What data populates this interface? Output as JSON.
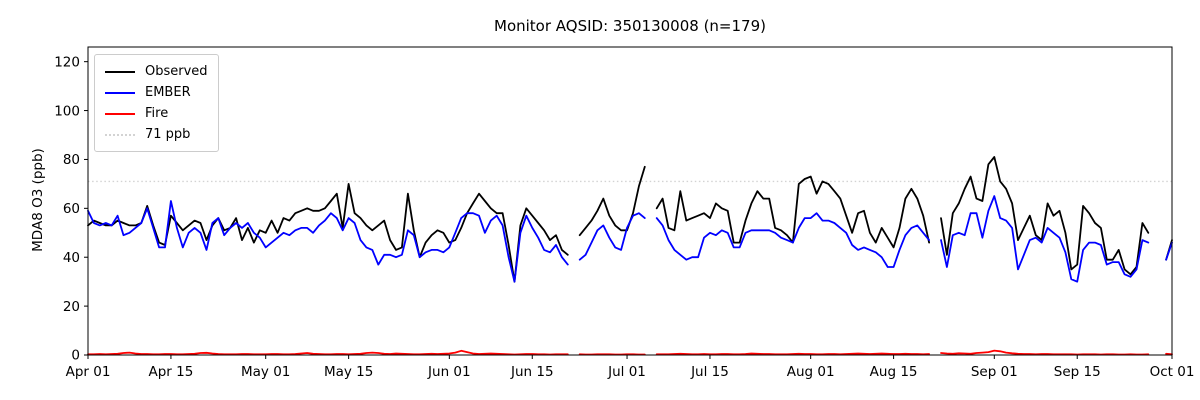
{
  "figure": {
    "background": "#ffffff"
  },
  "chart_data": {
    "type": "line",
    "title": "Monitor AQSID: 350130008 (n=179)",
    "ylabel": "MDA8 O3 (ppb)",
    "xlabel": "",
    "ylim": [
      0,
      126
    ],
    "y_ticks": [
      0,
      20,
      40,
      60,
      80,
      100,
      120
    ],
    "x_tick_days": [
      0,
      14,
      30,
      44,
      61,
      75,
      91,
      105,
      122,
      136,
      153,
      167,
      183
    ],
    "x_tick_labels": [
      "Apr 01",
      "Apr 15",
      "May 01",
      "May 15",
      "Jun 01",
      "Jun 15",
      "Jul 01",
      "Jul 15",
      "Aug 01",
      "Aug 15",
      "Sep 01",
      "Sep 15",
      "Oct 01"
    ],
    "n_days": 184,
    "n_points": 179,
    "grid": false,
    "legend_position": "upper-left",
    "threshold": {
      "label": "71 ppb",
      "value": 71,
      "color": "#d3d3d3",
      "style": "dotted"
    },
    "legend": [
      {
        "label": "Observed",
        "color": "#000000",
        "style": "solid"
      },
      {
        "label": "EMBER",
        "color": "#0000ff",
        "style": "solid"
      },
      {
        "label": "Fire",
        "color": "#ff0000",
        "style": "solid"
      },
      {
        "label": "71 ppb",
        "color": "#d3d3d3",
        "style": "dotted"
      }
    ],
    "series": [
      {
        "name": "Observed",
        "color": "#000000",
        "values": [
          53,
          55,
          54,
          53,
          53,
          55,
          54,
          53,
          53,
          54,
          61,
          53,
          46,
          45,
          57,
          54,
          51,
          53,
          55,
          54,
          47,
          53,
          56,
          51,
          52,
          56,
          47,
          52,
          46,
          51,
          50,
          55,
          50,
          56,
          55,
          58,
          59,
          60,
          59,
          59,
          60,
          63,
          66,
          52,
          70,
          58,
          56,
          53,
          51,
          53,
          55,
          47,
          43,
          44,
          66,
          51,
          40,
          46,
          49,
          51,
          50,
          46,
          47,
          52,
          58,
          62,
          66,
          63,
          60,
          58,
          58,
          45,
          30,
          53,
          60,
          57,
          54,
          51,
          47,
          49,
          43,
          41,
          null,
          49,
          52,
          55,
          59,
          64,
          57,
          53,
          51,
          51,
          58,
          69,
          77,
          null,
          60,
          64,
          52,
          51,
          67,
          55,
          56,
          57,
          58,
          56,
          62,
          60,
          59,
          46,
          46,
          55,
          62,
          67,
          64,
          64,
          52,
          51,
          49,
          46,
          70,
          72,
          73,
          66,
          71,
          70,
          67,
          64,
          57,
          50,
          58,
          59,
          50,
          46,
          52,
          48,
          44,
          52,
          64,
          68,
          64,
          57,
          46,
          null,
          56,
          41,
          58,
          62,
          68,
          73,
          64,
          63,
          78,
          81,
          71,
          68,
          62,
          47,
          52,
          57,
          49,
          47,
          62,
          57,
          59,
          50,
          35,
          37,
          61,
          58,
          54,
          52,
          39,
          39,
          43,
          35,
          33,
          36,
          54,
          50,
          null,
          null,
          39,
          47
        ]
      },
      {
        "name": "EMBER",
        "color": "#0000ff",
        "values": [
          59,
          54,
          53,
          54,
          53,
          57,
          49,
          50,
          52,
          54,
          60,
          52,
          44,
          44,
          63,
          52,
          44,
          50,
          52,
          50,
          43,
          54,
          56,
          49,
          52,
          54,
          52,
          54,
          50,
          48,
          44,
          46,
          48,
          50,
          49,
          51,
          52,
          52,
          50,
          53,
          55,
          58,
          56,
          51,
          56,
          54,
          47,
          44,
          43,
          37,
          41,
          41,
          40,
          41,
          51,
          49,
          40,
          42,
          43,
          43,
          42,
          44,
          50,
          56,
          58,
          58,
          57,
          50,
          55,
          57,
          53,
          40,
          30,
          50,
          57,
          52,
          48,
          43,
          42,
          45,
          40,
          37,
          null,
          39,
          41,
          46,
          51,
          53,
          48,
          44,
          43,
          52,
          57,
          58,
          56,
          null,
          56,
          53,
          47,
          43,
          41,
          39,
          40,
          40,
          48,
          50,
          49,
          51,
          50,
          44,
          44,
          50,
          51,
          51,
          51,
          51,
          50,
          48,
          47,
          46,
          52,
          56,
          56,
          58,
          55,
          55,
          54,
          52,
          50,
          45,
          43,
          44,
          43,
          42,
          40,
          36,
          36,
          43,
          49,
          52,
          53,
          50,
          47,
          null,
          47,
          36,
          49,
          50,
          49,
          58,
          58,
          48,
          59,
          65,
          56,
          55,
          52,
          35,
          41,
          47,
          48,
          46,
          52,
          50,
          48,
          42,
          31,
          30,
          43,
          46,
          46,
          45,
          37,
          38,
          38,
          33,
          32,
          35,
          47,
          46,
          null,
          null,
          39,
          46
        ]
      },
      {
        "name": "Fire",
        "color": "#ff0000",
        "values": [
          0.3,
          0.3,
          0.4,
          0.3,
          0.4,
          0.5,
          0.8,
          1.0,
          0.6,
          0.4,
          0.4,
          0.3,
          0.3,
          0.4,
          0.4,
          0.3,
          0.3,
          0.4,
          0.5,
          0.8,
          0.9,
          0.6,
          0.4,
          0.3,
          0.3,
          0.3,
          0.4,
          0.4,
          0.3,
          0.3,
          0.3,
          0.4,
          0.4,
          0.3,
          0.3,
          0.4,
          0.6,
          0.8,
          0.5,
          0.4,
          0.3,
          0.3,
          0.4,
          0.4,
          0.3,
          0.4,
          0.5,
          0.8,
          1.0,
          0.8,
          0.5,
          0.4,
          0.6,
          0.5,
          0.4,
          0.3,
          0.3,
          0.4,
          0.5,
          0.4,
          0.5,
          0.6,
          1.0,
          1.7,
          1.2,
          0.6,
          0.4,
          0.5,
          0.6,
          0.5,
          0.4,
          0.3,
          0.2,
          0.3,
          0.4,
          0.4,
          0.3,
          0.3,
          0.2,
          0.3,
          0.3,
          0.3,
          null,
          0.3,
          0.2,
          0.2,
          0.3,
          0.3,
          0.3,
          0.2,
          0.2,
          0.3,
          0.3,
          0.2,
          0.2,
          null,
          0.3,
          0.3,
          0.3,
          0.4,
          0.5,
          0.4,
          0.3,
          0.3,
          0.4,
          0.3,
          0.3,
          0.4,
          0.4,
          0.3,
          0.3,
          0.4,
          0.6,
          0.5,
          0.4,
          0.4,
          0.3,
          0.3,
          0.3,
          0.4,
          0.5,
          0.4,
          0.4,
          0.3,
          0.3,
          0.4,
          0.4,
          0.3,
          0.4,
          0.5,
          0.6,
          0.5,
          0.4,
          0.5,
          0.6,
          0.5,
          0.4,
          0.4,
          0.5,
          0.4,
          0.4,
          0.3,
          0.4,
          null,
          0.8,
          0.6,
          0.5,
          0.7,
          0.6,
          0.5,
          0.8,
          1.0,
          1.2,
          1.8,
          1.5,
          1.0,
          0.7,
          0.5,
          0.4,
          0.4,
          0.3,
          0.4,
          0.4,
          0.3,
          0.3,
          0.3,
          0.3,
          0.2,
          0.3,
          0.3,
          0.3,
          0.2,
          0.3,
          0.3,
          0.2,
          0.2,
          0.3,
          0.2,
          0.2,
          0.3,
          null,
          null,
          0.5,
          0.3
        ]
      }
    ]
  }
}
